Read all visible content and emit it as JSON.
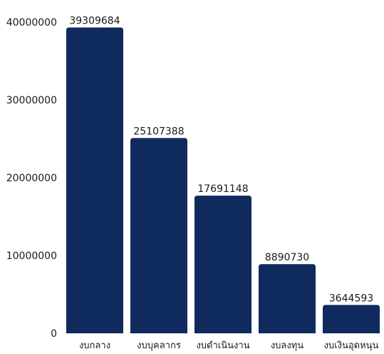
{
  "chart_data": {
    "type": "bar",
    "categories": [
      "งบกลาง",
      "งบบุคลากร",
      "งบดำเนินงาน",
      "งบลงทุน",
      "งบเงินอุดหนุน"
    ],
    "values": [
      39309684,
      25107388,
      17691148,
      8890730,
      3644593
    ],
    "data_labels": [
      "39309684",
      "25107388",
      "17691148",
      "8890730",
      "3644593"
    ],
    "y_ticks": [
      0,
      10000000,
      20000000,
      30000000,
      40000000
    ],
    "y_tick_labels": [
      "0",
      "10000000",
      "20000000",
      "30000000",
      "40000000"
    ],
    "ylim": [
      0,
      40000000
    ],
    "grid": false,
    "legend": "none",
    "title": "",
    "xlabel": "",
    "ylabel": "",
    "bar_color": "#0f2a5c"
  }
}
